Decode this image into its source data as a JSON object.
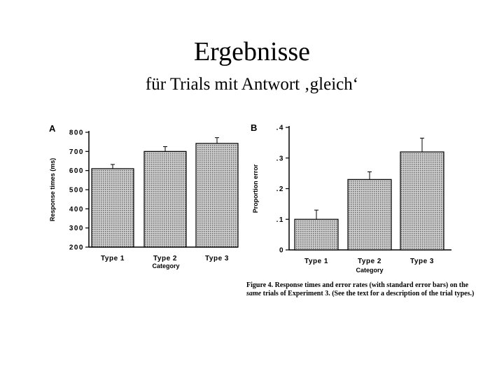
{
  "slide": {
    "title": "Ergebnisse",
    "subtitle": "für Trials mit Antwort ‚gleich‘"
  },
  "chart_data": [
    {
      "type": "bar",
      "panel_label": "A",
      "categories": [
        "Type 1",
        "Type 2",
        "Type 3"
      ],
      "values": [
        610,
        700,
        742
      ],
      "errors": [
        22,
        25,
        30
      ],
      "ylabel": "Response times (ms)",
      "xlabel": "Category",
      "ylim": [
        200,
        800
      ],
      "yticks": [
        200,
        300,
        400,
        500,
        600,
        700,
        800
      ],
      "ytick_labels": [
        "200",
        "300",
        "400",
        "500",
        "600",
        "700",
        "800"
      ],
      "grid": false,
      "bar_fill": "#b5b5b5"
    },
    {
      "type": "bar",
      "panel_label": "B",
      "categories": [
        "Type 1",
        "Type 2",
        "Type 3"
      ],
      "values": [
        0.1,
        0.23,
        0.32
      ],
      "errors": [
        0.03,
        0.025,
        0.045
      ],
      "ylabel": "Proportion error",
      "xlabel": "Category",
      "ylim": [
        0,
        0.4
      ],
      "yticks": [
        0,
        0.1,
        0.2,
        0.3,
        0.4
      ],
      "ytick_labels": [
        "0",
        ".1",
        ".2",
        ".3",
        ".4"
      ],
      "grid": false,
      "bar_fill": "#b5b5b5"
    }
  ],
  "caption": {
    "lead": "Figure 4. Response times and error rates (with standard error bars) on the ",
    "emph": "same",
    "rest": " trials of Experiment 3. (See the text for a description of the trial types.)"
  }
}
